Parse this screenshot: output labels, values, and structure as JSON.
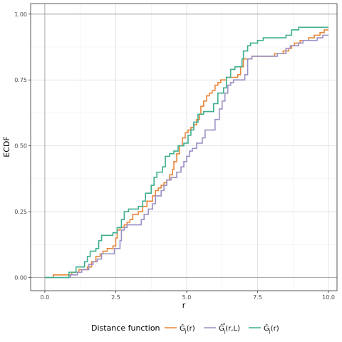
{
  "chart_data": {
    "type": "line",
    "step": true,
    "xlabel": "r",
    "ylabel": "ECDF",
    "xlim": [
      -0.5,
      10.3
    ],
    "ylim": [
      -0.05,
      1.04
    ],
    "x_ticks": [
      "0.0",
      "2.5",
      "5.0",
      "7.5",
      "10.0"
    ],
    "y_ticks": [
      "0.00",
      "0.25",
      "0.50",
      "0.75",
      "1.00"
    ],
    "grid": true,
    "legend_position": "bottom",
    "legend_title": "Distance function",
    "series": [
      {
        "name": "Ĝ_j(r)",
        "name_main": "Ĝ",
        "name_sub": "j",
        "name_sup": "",
        "name_arg": "(r)",
        "color": "#e8863a",
        "points": [
          [
            0,
            0
          ],
          [
            0.3,
            0.01
          ],
          [
            0.85,
            0.01
          ],
          [
            0.95,
            0.02
          ],
          [
            1.2,
            0.03
          ],
          [
            1.5,
            0.04
          ],
          [
            1.65,
            0.06
          ],
          [
            1.8,
            0.08
          ],
          [
            1.95,
            0.09
          ],
          [
            2.05,
            0.1
          ],
          [
            2.2,
            0.11
          ],
          [
            2.4,
            0.12
          ],
          [
            2.5,
            0.15
          ],
          [
            2.55,
            0.18
          ],
          [
            2.65,
            0.19
          ],
          [
            2.8,
            0.2
          ],
          [
            2.9,
            0.21
          ],
          [
            3.0,
            0.22
          ],
          [
            3.1,
            0.24
          ],
          [
            3.3,
            0.25
          ],
          [
            3.45,
            0.27
          ],
          [
            3.6,
            0.29
          ],
          [
            3.8,
            0.31
          ],
          [
            3.9,
            0.33
          ],
          [
            4.0,
            0.34
          ],
          [
            4.1,
            0.35
          ],
          [
            4.2,
            0.36
          ],
          [
            4.3,
            0.37
          ],
          [
            4.4,
            0.39
          ],
          [
            4.5,
            0.41
          ],
          [
            4.55,
            0.44
          ],
          [
            4.65,
            0.47
          ],
          [
            4.75,
            0.5
          ],
          [
            4.85,
            0.53
          ],
          [
            4.95,
            0.55
          ],
          [
            5.05,
            0.56
          ],
          [
            5.15,
            0.57
          ],
          [
            5.25,
            0.58
          ],
          [
            5.35,
            0.6
          ],
          [
            5.45,
            0.62
          ],
          [
            5.5,
            0.65
          ],
          [
            5.6,
            0.67
          ],
          [
            5.7,
            0.69
          ],
          [
            5.8,
            0.7
          ],
          [
            5.9,
            0.71
          ],
          [
            6.0,
            0.73
          ],
          [
            6.1,
            0.74
          ],
          [
            6.2,
            0.75
          ],
          [
            6.4,
            0.76
          ],
          [
            6.5,
            0.76
          ],
          [
            6.8,
            0.77
          ],
          [
            6.9,
            0.8
          ],
          [
            7.0,
            0.83
          ],
          [
            7.3,
            0.84
          ],
          [
            7.6,
            0.84
          ],
          [
            8.1,
            0.85
          ],
          [
            8.4,
            0.86
          ],
          [
            8.6,
            0.87
          ],
          [
            8.7,
            0.88
          ],
          [
            8.8,
            0.89
          ],
          [
            9.0,
            0.9
          ],
          [
            9.3,
            0.91
          ],
          [
            9.5,
            0.92
          ],
          [
            9.7,
            0.93
          ],
          [
            9.85,
            0.94
          ],
          [
            10.0,
            0.94
          ]
        ]
      },
      {
        "name": "Ĝ*_j(r,L)",
        "name_main": "Ĝ",
        "name_sub": "j",
        "name_sup": "*",
        "name_arg": "(r,L)",
        "color": "#9b8fc4",
        "points": [
          [
            0,
            0
          ],
          [
            0.9,
            0.01
          ],
          [
            1.15,
            0.02
          ],
          [
            1.3,
            0.03
          ],
          [
            1.55,
            0.05
          ],
          [
            1.7,
            0.06
          ],
          [
            1.85,
            0.07
          ],
          [
            2.0,
            0.09
          ],
          [
            2.2,
            0.09
          ],
          [
            2.45,
            0.11
          ],
          [
            2.65,
            0.14
          ],
          [
            2.7,
            0.18
          ],
          [
            2.8,
            0.19
          ],
          [
            2.9,
            0.2
          ],
          [
            3.3,
            0.2
          ],
          [
            3.4,
            0.22
          ],
          [
            3.5,
            0.24
          ],
          [
            3.65,
            0.26
          ],
          [
            3.8,
            0.28
          ],
          [
            3.9,
            0.31
          ],
          [
            4.1,
            0.33
          ],
          [
            4.2,
            0.35
          ],
          [
            4.3,
            0.37
          ],
          [
            4.45,
            0.38
          ],
          [
            4.65,
            0.4
          ],
          [
            4.8,
            0.42
          ],
          [
            4.9,
            0.44
          ],
          [
            5.0,
            0.46
          ],
          [
            5.1,
            0.48
          ],
          [
            5.2,
            0.49
          ],
          [
            5.35,
            0.51
          ],
          [
            5.55,
            0.53
          ],
          [
            5.65,
            0.56
          ],
          [
            5.85,
            0.56
          ],
          [
            6.0,
            0.6
          ],
          [
            6.15,
            0.64
          ],
          [
            6.25,
            0.67
          ],
          [
            6.35,
            0.7
          ],
          [
            6.45,
            0.73
          ],
          [
            6.55,
            0.74
          ],
          [
            6.65,
            0.75
          ],
          [
            7.05,
            0.77
          ],
          [
            7.15,
            0.83
          ],
          [
            7.3,
            0.84
          ],
          [
            8.2,
            0.85
          ],
          [
            8.5,
            0.87
          ],
          [
            8.65,
            0.88
          ],
          [
            8.8,
            0.88
          ],
          [
            8.95,
            0.89
          ],
          [
            9.1,
            0.9
          ],
          [
            9.4,
            0.9
          ],
          [
            9.6,
            0.91
          ],
          [
            9.8,
            0.92
          ],
          [
            10.0,
            0.92
          ]
        ]
      },
      {
        "name": "Ĝ_j(r)",
        "name_main": "Ĝ",
        "name_sub": "j",
        "name_sup": "",
        "name_arg": "(r)",
        "color": "#3eaf8f",
        "points": [
          [
            0,
            0
          ],
          [
            0.85,
            0.02
          ],
          [
            1.1,
            0.04
          ],
          [
            1.4,
            0.06
          ],
          [
            1.5,
            0.08
          ],
          [
            1.6,
            0.1
          ],
          [
            1.8,
            0.11
          ],
          [
            1.9,
            0.14
          ],
          [
            2.0,
            0.16
          ],
          [
            2.4,
            0.17
          ],
          [
            2.55,
            0.19
          ],
          [
            2.7,
            0.22
          ],
          [
            2.8,
            0.25
          ],
          [
            2.95,
            0.26
          ],
          [
            3.3,
            0.27
          ],
          [
            3.45,
            0.29
          ],
          [
            3.55,
            0.32
          ],
          [
            3.75,
            0.35
          ],
          [
            3.85,
            0.38
          ],
          [
            3.95,
            0.4
          ],
          [
            4.15,
            0.42
          ],
          [
            4.25,
            0.46
          ],
          [
            4.4,
            0.47
          ],
          [
            4.55,
            0.48
          ],
          [
            4.7,
            0.5
          ],
          [
            4.9,
            0.51
          ],
          [
            5.05,
            0.54
          ],
          [
            5.15,
            0.56
          ],
          [
            5.25,
            0.59
          ],
          [
            5.4,
            0.62
          ],
          [
            5.6,
            0.63
          ],
          [
            5.95,
            0.66
          ],
          [
            6.1,
            0.7
          ],
          [
            6.3,
            0.72
          ],
          [
            6.4,
            0.76
          ],
          [
            6.55,
            0.79
          ],
          [
            6.7,
            0.8
          ],
          [
            6.95,
            0.83
          ],
          [
            7.0,
            0.86
          ],
          [
            7.15,
            0.88
          ],
          [
            7.25,
            0.89
          ],
          [
            7.5,
            0.9
          ],
          [
            7.7,
            0.91
          ],
          [
            8.5,
            0.92
          ],
          [
            8.7,
            0.94
          ],
          [
            8.95,
            0.95
          ],
          [
            10.0,
            0.95
          ]
        ]
      }
    ]
  }
}
